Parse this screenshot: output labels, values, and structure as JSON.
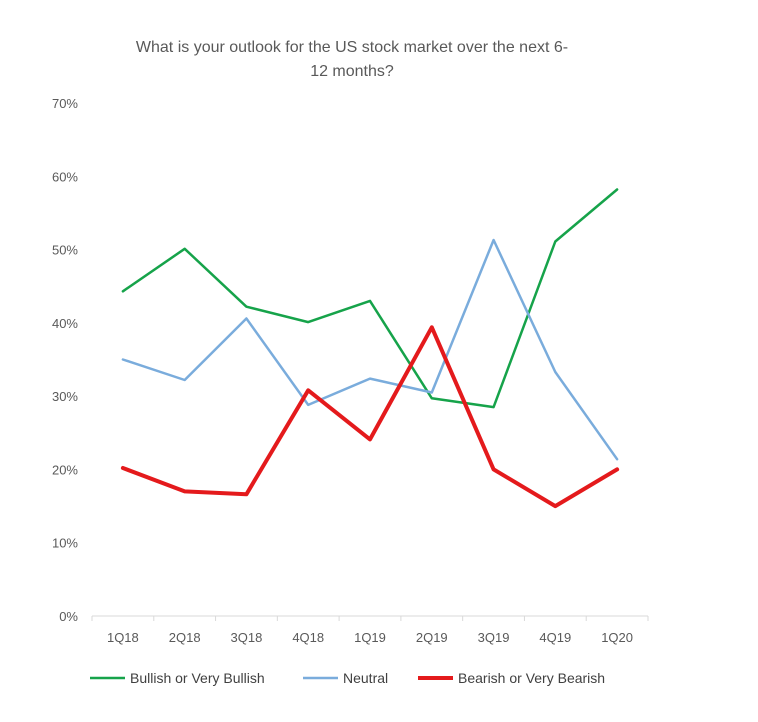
{
  "chart_data": {
    "type": "line",
    "title_lines": [
      "What is your outlook for the US stock market over the next 6-",
      "12 months?"
    ],
    "categories": [
      "1Q18",
      "2Q18",
      "3Q18",
      "4Q18",
      "1Q19",
      "2Q19",
      "3Q19",
      "4Q19",
      "1Q20"
    ],
    "ylim": [
      0,
      70
    ],
    "yticks": [
      0,
      10,
      20,
      30,
      40,
      50,
      60,
      70
    ],
    "ytick_labels": [
      "0%",
      "10%",
      "20%",
      "30%",
      "40%",
      "50%",
      "60%",
      "70%"
    ],
    "grid": false,
    "legend_position": "bottom",
    "series": [
      {
        "name": "Bullish or Very Bullish",
        "color": "#16a34a",
        "values": [
          44.3,
          50.1,
          42.2,
          40.1,
          43.0,
          29.7,
          28.5,
          51.1,
          58.2
        ]
      },
      {
        "name": "Neutral",
        "color": "#7aacdc",
        "values": [
          35.0,
          32.2,
          40.6,
          28.8,
          32.4,
          30.5,
          51.3,
          33.3,
          21.4
        ]
      },
      {
        "name": "Bearish or Very Bearish",
        "color": "#e41a1c",
        "values": [
          20.2,
          17.0,
          16.6,
          30.8,
          24.1,
          39.4,
          20.0,
          15.0,
          20.0
        ]
      }
    ]
  }
}
